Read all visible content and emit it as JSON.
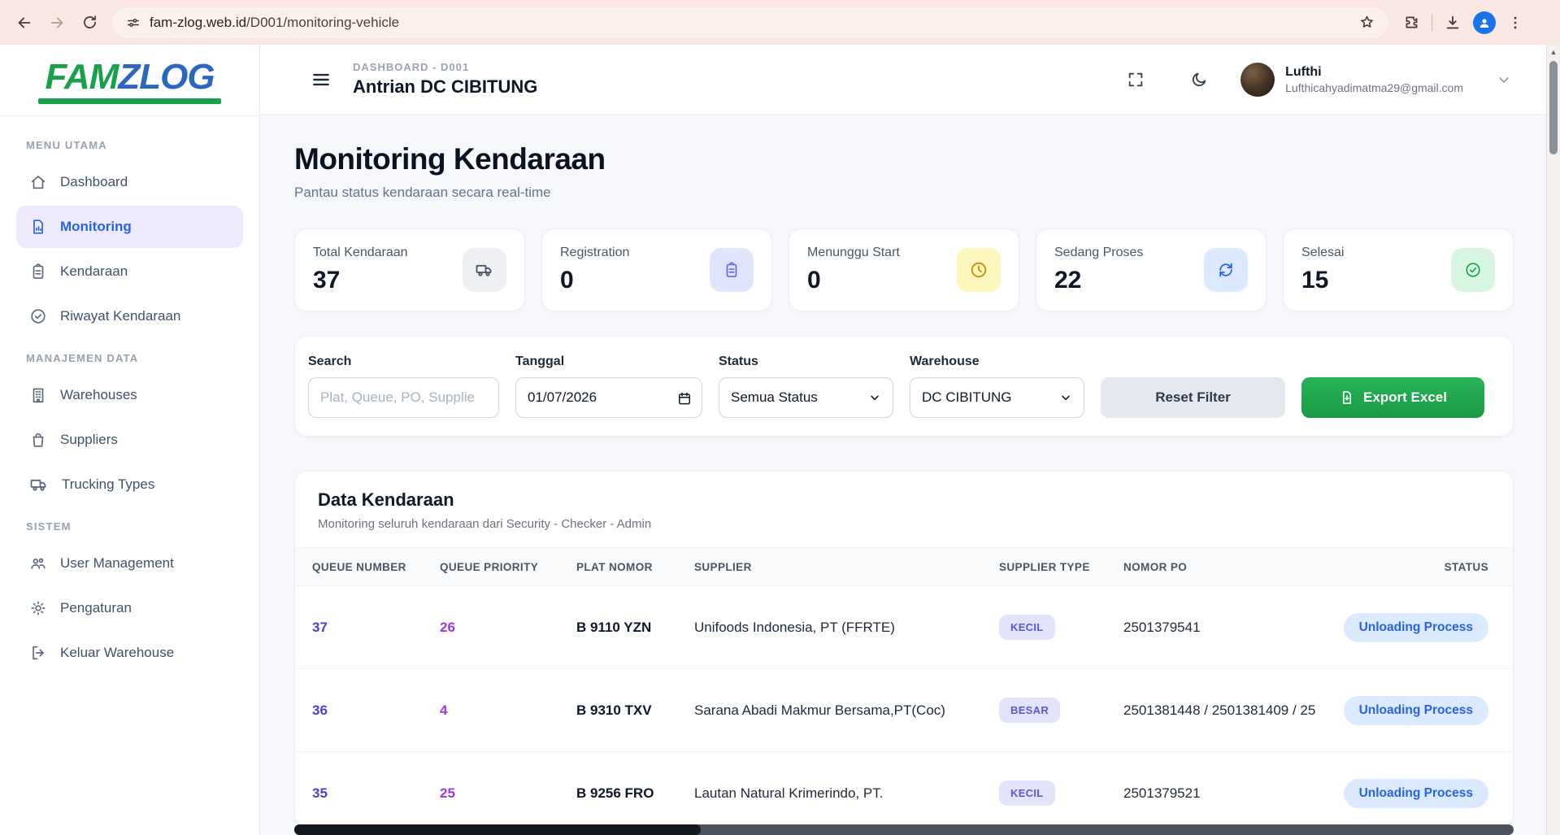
{
  "browser": {
    "url_domain": "fam-zlog.web.id",
    "url_path": "/D001/monitoring-vehicle"
  },
  "sidebar": {
    "logo_part1": "FAM",
    "logo_part2": "ZLOG",
    "sections": [
      {
        "label": "MENU UTAMA",
        "items": [
          {
            "label": "Dashboard",
            "icon": "home-icon",
            "active": false
          },
          {
            "label": "Monitoring",
            "icon": "chart-doc-icon",
            "active": true
          },
          {
            "label": "Kendaraan",
            "icon": "clipboard-icon",
            "active": false
          },
          {
            "label": "Riwayat Kendaraan",
            "icon": "check-circle-icon",
            "active": false
          }
        ]
      },
      {
        "label": "MANAJEMEN DATA",
        "items": [
          {
            "label": "Warehouses",
            "icon": "building-icon",
            "active": false
          },
          {
            "label": "Suppliers",
            "icon": "bag-icon",
            "active": false
          },
          {
            "label": "Trucking Types",
            "icon": "truck-icon",
            "active": false
          }
        ]
      },
      {
        "label": "SISTEM",
        "items": [
          {
            "label": "User Management",
            "icon": "users-icon",
            "active": false
          },
          {
            "label": "Pengaturan",
            "icon": "gear-icon",
            "active": false
          },
          {
            "label": "Keluar Warehouse",
            "icon": "logout-icon",
            "active": false
          }
        ]
      }
    ]
  },
  "header": {
    "breadcrumb": "DASHBOARD - D001",
    "title": "Antrian DC CIBITUNG",
    "user": {
      "name": "Lufthi",
      "email": "Lufthicahyadimatma29@gmail.com"
    }
  },
  "page": {
    "title": "Monitoring Kendaraan",
    "subtitle": "Pantau status kendaraan secara real-time"
  },
  "stats": [
    {
      "label": "Total Kendaraan",
      "value": "37",
      "icon": "truck-icon",
      "icon_bg": "#eef0f3",
      "icon_color": "#4b5563"
    },
    {
      "label": "Registration",
      "value": "0",
      "icon": "clipboard-icon",
      "icon_bg": "#e0e4fc",
      "icon_color": "#6366f1"
    },
    {
      "label": "Menunggu Start",
      "value": "0",
      "icon": "clock-icon",
      "icon_bg": "#fdf6bd",
      "icon_color": "#ca8a04"
    },
    {
      "label": "Sedang Proses",
      "value": "22",
      "icon": "refresh-icon",
      "icon_bg": "#dbeafe",
      "icon_color": "#2563eb"
    },
    {
      "label": "Selesai",
      "value": "15",
      "icon": "check-circle-icon",
      "icon_bg": "#d8f5e1",
      "icon_color": "#17a24a"
    }
  ],
  "filters": {
    "search_label": "Search",
    "search_placeholder": "Plat, Queue, PO, Supplie",
    "date_label": "Tanggal",
    "date_value": "01/07/2026",
    "status_label": "Status",
    "status_value": "Semua Status",
    "warehouse_label": "Warehouse",
    "warehouse_value": "DC CIBITUNG",
    "reset_label": "Reset Filter",
    "export_label": "Export Excel"
  },
  "table": {
    "title": "Data Kendaraan",
    "subtitle": "Monitoring seluruh kendaraan dari Security - Checker - Admin",
    "columns": [
      "QUEUE NUMBER",
      "QUEUE PRIORITY",
      "PLAT NOMOR",
      "SUPPLIER",
      "SUPPLIER TYPE",
      "NOMOR PO",
      "STATUS"
    ],
    "rows": [
      {
        "queue_number": "37",
        "queue_priority": "26",
        "plat": "B 9110 YZN",
        "supplier": "Unifoods Indonesia, PT (FFRTE)",
        "supplier_type": "KECIL",
        "nomor_po": "2501379541",
        "status": "Unloading Process"
      },
      {
        "queue_number": "36",
        "queue_priority": "4",
        "plat": "B 9310 TXV",
        "supplier": "Sarana Abadi Makmur Bersama,PT(Coc)",
        "supplier_type": "BESAR",
        "nomor_po": "2501381448 / 2501381409 / 25",
        "status": "Unloading Process"
      },
      {
        "queue_number": "35",
        "queue_priority": "25",
        "plat": "B 9256 FRO",
        "supplier": "Lautan Natural Krimerindo, PT.",
        "supplier_type": "KECIL",
        "nomor_po": "2501379521",
        "status": "Unloading Process"
      }
    ]
  }
}
